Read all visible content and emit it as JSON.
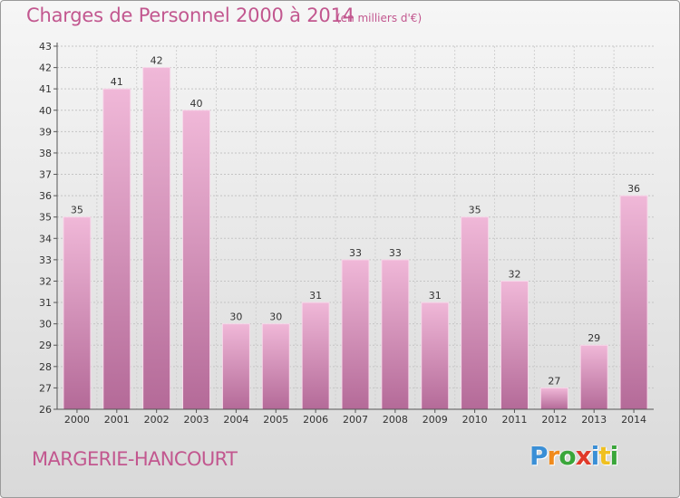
{
  "title": "Charges de Personnel 2000 à 2014",
  "unit_note": "(en milliers d'€)",
  "commune": "MARGERIE-HANCOURT",
  "logo": {
    "letters": [
      "P",
      "r",
      "o",
      "x",
      "i",
      "t",
      "i"
    ],
    "colors": [
      "#3a8fd6",
      "#f08a1c",
      "#3aa63a",
      "#e03a2a",
      "#3a8fd6",
      "#f0c020",
      "#3aa63a"
    ]
  },
  "colors": {
    "bar_light": "#f0b8d8",
    "bar_dark": "#b46a98",
    "title": "#c2578f"
  },
  "chart_data": {
    "type": "bar",
    "categories": [
      "2000",
      "2001",
      "2002",
      "2003",
      "2004",
      "2005",
      "2006",
      "2007",
      "2008",
      "2009",
      "2010",
      "2011",
      "2012",
      "2013",
      "2014"
    ],
    "values": [
      35,
      41,
      42,
      40,
      30,
      30,
      31,
      33,
      33,
      31,
      35,
      32,
      27,
      29,
      36
    ],
    "ylim": [
      26,
      43
    ],
    "yticks": [
      26,
      27,
      28,
      29,
      30,
      31,
      32,
      33,
      34,
      35,
      36,
      37,
      38,
      39,
      40,
      41,
      42,
      43
    ],
    "grid": true,
    "data_labels": true
  }
}
